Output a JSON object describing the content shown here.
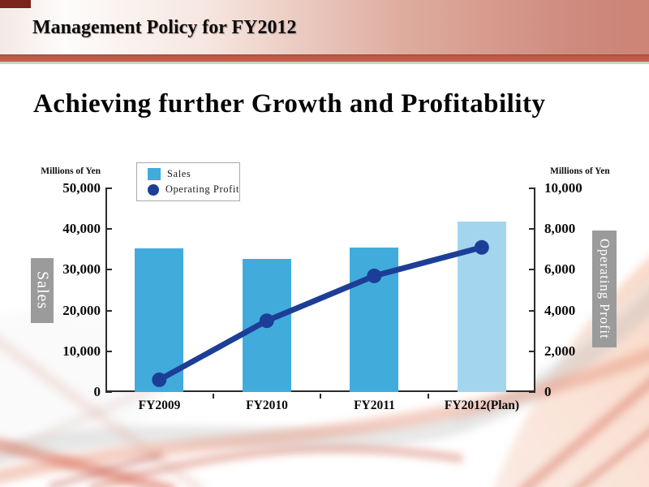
{
  "header": {
    "title": "Management Policy for FY2012"
  },
  "headline": "Achieving further Growth and Profitability",
  "chart": {
    "left_axis": {
      "unit_label": "Millions of Yen",
      "ticks": [
        {
          "label": "50,000",
          "value": 50000
        },
        {
          "label": "40,000",
          "value": 40000
        },
        {
          "label": "30,000",
          "value": 30000
        },
        {
          "label": "20,000",
          "value": 20000
        },
        {
          "label": "10,000",
          "value": 10000
        },
        {
          "label": "0",
          "value": 0
        }
      ]
    },
    "right_axis": {
      "unit_label": "Millions of Yen",
      "ticks": [
        {
          "label": "10,000",
          "value": 10000
        },
        {
          "label": "8,000",
          "value": 8000
        },
        {
          "label": "6,000",
          "value": 6000
        },
        {
          "label": "4,000",
          "value": 4000
        },
        {
          "label": "2,000",
          "value": 2000
        },
        {
          "label": "0",
          "value": 0
        }
      ]
    },
    "legend": [
      {
        "label": "Sales",
        "swatch": "square"
      },
      {
        "label": "Operating Profit",
        "swatch": "circle"
      }
    ],
    "side_labels": {
      "left": "Sales",
      "right": "Operating Profit"
    }
  },
  "chart_data": {
    "type": "bar+line",
    "categories": [
      "FY2009",
      "FY2010",
      "FY2011",
      "FY2012(Plan)"
    ],
    "series": [
      {
        "name": "Sales",
        "type": "bar",
        "axis": "left",
        "values": [
          35200,
          32700,
          35500,
          41800
        ],
        "colors": [
          "#41acdc",
          "#41acdc",
          "#41acdc",
          "#a3d6ee"
        ]
      },
      {
        "name": "Operating Profit",
        "type": "line",
        "axis": "right",
        "values": [
          600,
          3500,
          5700,
          7100
        ],
        "color": "#1d3e97"
      }
    ],
    "left_ylim": [
      0,
      50000
    ],
    "right_ylim": [
      0,
      10000
    ],
    "left_ylabel": "Millions of Yen",
    "right_ylabel": "Millions of Yen",
    "grid": false,
    "legend_position": "top-left",
    "values_are_estimated_from_pixels": true
  },
  "colors": {
    "bar_blue": "#41acdc",
    "bar_light_blue": "#a3d6ee",
    "line_navy": "#1d3e97",
    "side_label_gray": "#9b9b9b",
    "header_salmon": "#cf8b7e",
    "separator_red": "#bd5a49",
    "corner_maroon": "#7a241b",
    "axis_black": "#2b2b2b"
  }
}
